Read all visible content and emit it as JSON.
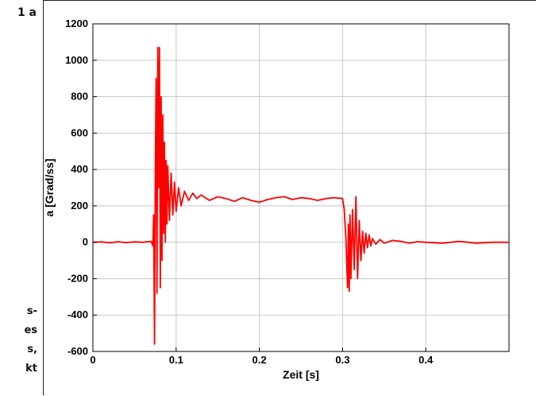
{
  "figure": {
    "label": "1 a",
    "side_text": [
      "s-",
      "es",
      "s,",
      "kt"
    ]
  },
  "chart_data": {
    "type": "line",
    "title": "",
    "xlabel": "Zeit [s]",
    "ylabel": "a [Grad/ss]",
    "xlim": [
      0,
      0.5
    ],
    "ylim": [
      -600,
      1200
    ],
    "x_ticks": [
      0,
      0.1,
      0.2,
      0.3,
      0.4
    ],
    "x_tick_labels": [
      "0",
      "0.1",
      "0.2",
      "0.3",
      "0.4"
    ],
    "y_ticks": [
      -600,
      -400,
      -200,
      0,
      200,
      400,
      600,
      800,
      1000,
      1200
    ],
    "y_tick_labels": [
      "-600",
      "-400",
      "-200",
      "0",
      "200",
      "400",
      "600",
      "800",
      "1000",
      "1200"
    ],
    "grid": true,
    "series": [
      {
        "color": "#ff0000",
        "x": [
          0,
          0.01,
          0.02,
          0.03,
          0.04,
          0.05,
          0.06,
          0.07,
          0.072,
          0.073,
          0.074,
          0.075,
          0.076,
          0.077,
          0.078,
          0.079,
          0.08,
          0.081,
          0.082,
          0.083,
          0.084,
          0.085,
          0.086,
          0.087,
          0.088,
          0.089,
          0.09,
          0.092,
          0.094,
          0.096,
          0.098,
          0.1,
          0.103,
          0.106,
          0.11,
          0.115,
          0.12,
          0.125,
          0.13,
          0.14,
          0.15,
          0.16,
          0.17,
          0.18,
          0.19,
          0.2,
          0.21,
          0.22,
          0.23,
          0.24,
          0.25,
          0.26,
          0.27,
          0.28,
          0.29,
          0.3,
          0.302,
          0.304,
          0.306,
          0.307,
          0.308,
          0.309,
          0.31,
          0.312,
          0.314,
          0.316,
          0.318,
          0.32,
          0.322,
          0.324,
          0.326,
          0.328,
          0.33,
          0.332,
          0.334,
          0.336,
          0.34,
          0.345,
          0.35,
          0.36,
          0.37,
          0.38,
          0.39,
          0.4,
          0.42,
          0.44,
          0.46,
          0.48,
          0.5
        ],
        "y": [
          0,
          2,
          -3,
          3,
          -2,
          2,
          0,
          5,
          -20,
          150,
          -560,
          400,
          900,
          -280,
          1070,
          300,
          1070,
          -250,
          800,
          -100,
          700,
          50,
          550,
          0,
          450,
          100,
          420,
          120,
          380,
          150,
          330,
          170,
          300,
          200,
          280,
          230,
          270,
          240,
          260,
          230,
          250,
          240,
          225,
          245,
          230,
          220,
          235,
          245,
          250,
          235,
          245,
          240,
          230,
          240,
          245,
          240,
          180,
          20,
          -250,
          100,
          -270,
          150,
          -200,
          180,
          -150,
          250,
          -200,
          120,
          -100,
          60,
          -60,
          50,
          -30,
          40,
          -20,
          20,
          -10,
          15,
          -5,
          10,
          5,
          -5,
          3,
          0,
          -5,
          5,
          -5,
          0,
          0
        ]
      }
    ]
  }
}
